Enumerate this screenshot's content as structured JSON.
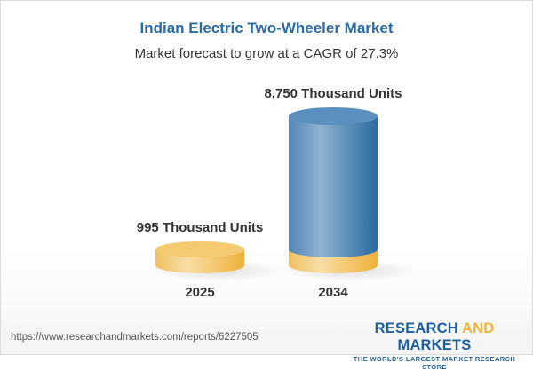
{
  "title": "Indian Electric Two-Wheeler Market",
  "subtitle": "Market forecast to grow at a CAGR of 27.3%",
  "chart_data": {
    "type": "bar",
    "style": "3d-cylinder",
    "categories": [
      "2025",
      "2034"
    ],
    "values": [
      995,
      8750
    ],
    "unit": "Thousand Units",
    "data_labels": [
      "995 Thousand Units",
      "8,750 Thousand Units"
    ],
    "colors": {
      "base": "#f3c35f",
      "growth": "#4f86b7"
    }
  },
  "footer": {
    "url": "https://www.researchandmarkets.com/reports/6227505",
    "logo_part1": "RESEARCH ",
    "logo_part2": "AND",
    "logo_part3": " MARKETS",
    "tagline": "THE WORLD'S LARGEST MARKET RESEARCH STORE"
  }
}
